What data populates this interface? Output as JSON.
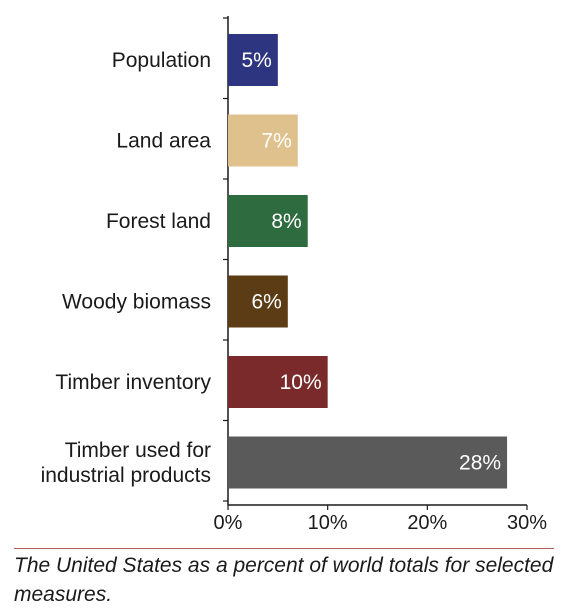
{
  "chart_data": {
    "type": "bar",
    "orientation": "horizontal",
    "categories": [
      [
        "Population"
      ],
      [
        "Land area"
      ],
      [
        "Forest land"
      ],
      [
        "Woody biomass"
      ],
      [
        "Timber inventory"
      ],
      [
        "Timber used for",
        "industrial products"
      ]
    ],
    "values": [
      5,
      7,
      8,
      6,
      10,
      28
    ],
    "value_labels": [
      "5%",
      "7%",
      "8%",
      "6%",
      "10%",
      "28%"
    ],
    "colors": [
      "#2e3580",
      "#dfc18d",
      "#2e6b3e",
      "#5b3c14",
      "#7a2a2a",
      "#5a5a5a"
    ],
    "value_label_colors": [
      "#ffffff",
      "#ffffff",
      "#ffffff",
      "#ffffff",
      "#ffffff",
      "#ffffff"
    ],
    "xlim": [
      0,
      30
    ],
    "xticks": [
      0,
      10,
      20,
      30
    ],
    "xtick_labels": [
      "0%",
      "10%",
      "20%",
      "30%"
    ],
    "grid": false,
    "title": "",
    "xlabel": "",
    "ylabel": ""
  },
  "caption": "The United States as a percent of world totals for selected measures."
}
